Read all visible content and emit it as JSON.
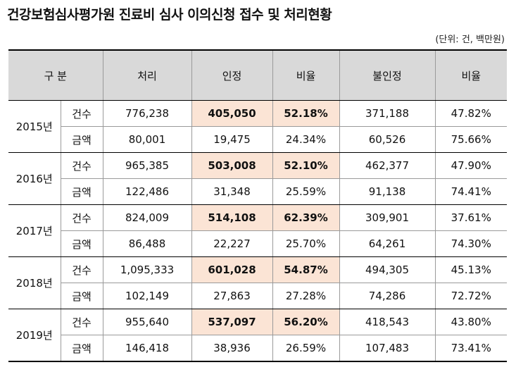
{
  "title": "건강보험심사평가원 진료비 심사 이의신청 접수 및 처리현황",
  "unit": "(단위: 건, 백만원)",
  "headers": [
    "구 분",
    "처리",
    "인정",
    "비율",
    "불인정",
    "비율"
  ],
  "colors": {
    "header_bg": "#d9d9d9",
    "highlight_bg": "#fbe4d5"
  },
  "years": [
    {
      "year": "2015년",
      "cases": {
        "label": "건수",
        "processed": "776,238",
        "accepted": "405,050",
        "accepted_rate": "52.18%",
        "rejected": "371,188",
        "rejected_rate": "47.82%"
      },
      "amount": {
        "label": "금액",
        "processed": "80,001",
        "accepted": "19,475",
        "accepted_rate": "24.34%",
        "rejected": "60,526",
        "rejected_rate": "75.66%"
      }
    },
    {
      "year": "2016년",
      "cases": {
        "label": "건수",
        "processed": "965,385",
        "accepted": "503,008",
        "accepted_rate": "52.10%",
        "rejected": "462,377",
        "rejected_rate": "47.90%"
      },
      "amount": {
        "label": "금액",
        "processed": "122,486",
        "accepted": "31,348",
        "accepted_rate": "25.59%",
        "rejected": "91,138",
        "rejected_rate": "74.41%"
      }
    },
    {
      "year": "2017년",
      "cases": {
        "label": "건수",
        "processed": "824,009",
        "accepted": "514,108",
        "accepted_rate": "62.39%",
        "rejected": "309,901",
        "rejected_rate": "37.61%"
      },
      "amount": {
        "label": "금액",
        "processed": "86,488",
        "accepted": "22,227",
        "accepted_rate": "25.70%",
        "rejected": "64,261",
        "rejected_rate": "74.30%"
      }
    },
    {
      "year": "2018년",
      "cases": {
        "label": "건수",
        "processed": "1,095,333",
        "accepted": "601,028",
        "accepted_rate": "54.87%",
        "rejected": "494,305",
        "rejected_rate": "45.13%"
      },
      "amount": {
        "label": "금액",
        "processed": "102,149",
        "accepted": "27,863",
        "accepted_rate": "27.28%",
        "rejected": "74,286",
        "rejected_rate": "72.72%"
      }
    },
    {
      "year": "2019년",
      "cases": {
        "label": "건수",
        "processed": "955,640",
        "accepted": "537,097",
        "accepted_rate": "56.20%",
        "rejected": "418,543",
        "rejected_rate": "43.80%"
      },
      "amount": {
        "label": "금액",
        "processed": "146,418",
        "accepted": "38,936",
        "accepted_rate": "26.59%",
        "rejected": "107,483",
        "rejected_rate": "73.41%"
      }
    }
  ]
}
